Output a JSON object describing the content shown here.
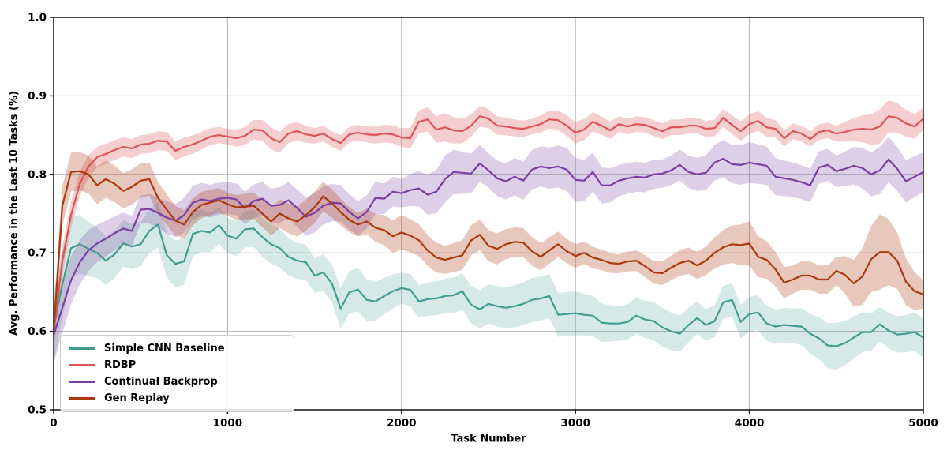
{
  "chart_data": {
    "type": "line",
    "title": "",
    "xlabel": "Task Number",
    "ylabel": "Avg. Performance in the Last 10 Tasks (%)",
    "xlim": [
      0,
      5000
    ],
    "ylim": [
      0.5,
      1.0
    ],
    "x_ticks": [
      0,
      1000,
      2000,
      3000,
      4000,
      5000
    ],
    "x_tick_labels": [
      "0",
      "1000",
      "2000",
      "3000",
      "4000",
      "5000"
    ],
    "y_ticks": [
      0.5,
      0.6,
      0.7,
      0.8,
      0.9,
      1.0
    ],
    "y_tick_labels": [
      "0.5",
      "0.6",
      "0.7",
      "0.8",
      "0.9",
      "1.0"
    ],
    "grid": true,
    "grid_color": "#b0b0b0",
    "legend_position": "lower left",
    "x_step": 50,
    "band_x_step": 250,
    "series": [
      {
        "name": "Simple CNN Baseline",
        "color": "#419e8f",
        "band_alpha": 0.22,
        "values": [
          0.605,
          0.66,
          0.706,
          0.711,
          0.705,
          0.7,
          0.69,
          0.698,
          0.712,
          0.708,
          0.711,
          0.728,
          0.736,
          0.697,
          0.686,
          0.689,
          0.724,
          0.728,
          0.726,
          0.735,
          0.722,
          0.718,
          0.73,
          0.731,
          0.72,
          0.711,
          0.706,
          0.695,
          0.69,
          0.688,
          0.671,
          0.675,
          0.661,
          0.629,
          0.65,
          0.653,
          0.64,
          0.638,
          0.645,
          0.651,
          0.655,
          0.653,
          0.638,
          0.641,
          0.642,
          0.645,
          0.646,
          0.651,
          0.634,
          0.628,
          0.635,
          0.632,
          0.63,
          0.632,
          0.635,
          0.64,
          0.642,
          0.645,
          0.621,
          0.622,
          0.623,
          0.621,
          0.62,
          0.611,
          0.61,
          0.61,
          0.612,
          0.62,
          0.615,
          0.613,
          0.605,
          0.6,
          0.597,
          0.608,
          0.617,
          0.608,
          0.613,
          0.637,
          0.64,
          0.612,
          0.622,
          0.624,
          0.61,
          0.606,
          0.608,
          0.607,
          0.606,
          0.597,
          0.591,
          0.582,
          0.581,
          0.585,
          0.592,
          0.599,
          0.599,
          0.609,
          0.601,
          0.596,
          0.597,
          0.599,
          0.592
        ],
        "band_halfwidth": [
          0.045,
          0.032,
          0.028,
          0.03,
          0.022,
          0.025,
          0.022,
          0.028,
          0.02,
          0.022,
          0.025,
          0.028,
          0.028,
          0.022,
          0.025,
          0.02,
          0.022,
          0.022,
          0.03,
          0.022,
          0.025
        ]
      },
      {
        "name": "RDBP",
        "color": "#dc5457",
        "band_alpha": 0.28,
        "values": [
          0.6,
          0.69,
          0.748,
          0.788,
          0.81,
          0.822,
          0.826,
          0.831,
          0.835,
          0.833,
          0.838,
          0.839,
          0.843,
          0.842,
          0.83,
          0.835,
          0.838,
          0.843,
          0.848,
          0.85,
          0.848,
          0.846,
          0.849,
          0.857,
          0.856,
          0.846,
          0.841,
          0.852,
          0.855,
          0.851,
          0.849,
          0.852,
          0.845,
          0.84,
          0.851,
          0.853,
          0.851,
          0.85,
          0.852,
          0.851,
          0.847,
          0.846,
          0.867,
          0.87,
          0.857,
          0.86,
          0.856,
          0.855,
          0.862,
          0.874,
          0.871,
          0.862,
          0.861,
          0.859,
          0.858,
          0.861,
          0.864,
          0.87,
          0.869,
          0.862,
          0.853,
          0.857,
          0.867,
          0.862,
          0.856,
          0.864,
          0.861,
          0.864,
          0.863,
          0.859,
          0.855,
          0.86,
          0.86,
          0.862,
          0.862,
          0.858,
          0.859,
          0.872,
          0.863,
          0.855,
          0.864,
          0.868,
          0.86,
          0.858,
          0.846,
          0.855,
          0.852,
          0.845,
          0.854,
          0.856,
          0.852,
          0.854,
          0.857,
          0.858,
          0.857,
          0.861,
          0.874,
          0.872,
          0.865,
          0.861,
          0.871
        ],
        "band_halfwidth": [
          0.02,
          0.013,
          0.012,
          0.012,
          0.01,
          0.014,
          0.01,
          0.01,
          0.012,
          0.018,
          0.012,
          0.01,
          0.014,
          0.01,
          0.01,
          0.01,
          0.013,
          0.01,
          0.01,
          0.022,
          0.014
        ]
      },
      {
        "name": "Continual Backprop",
        "color": "#7b3fa3",
        "band_alpha": 0.25,
        "values": [
          0.595,
          0.63,
          0.665,
          0.688,
          0.703,
          0.712,
          0.718,
          0.725,
          0.731,
          0.728,
          0.755,
          0.756,
          0.751,
          0.745,
          0.741,
          0.748,
          0.764,
          0.768,
          0.766,
          0.769,
          0.77,
          0.768,
          0.757,
          0.766,
          0.769,
          0.76,
          0.761,
          0.767,
          0.757,
          0.746,
          0.751,
          0.76,
          0.764,
          0.763,
          0.752,
          0.744,
          0.752,
          0.77,
          0.769,
          0.778,
          0.776,
          0.78,
          0.782,
          0.774,
          0.778,
          0.794,
          0.803,
          0.802,
          0.801,
          0.814,
          0.805,
          0.795,
          0.791,
          0.797,
          0.792,
          0.806,
          0.81,
          0.808,
          0.81,
          0.806,
          0.793,
          0.792,
          0.803,
          0.786,
          0.786,
          0.792,
          0.795,
          0.797,
          0.796,
          0.8,
          0.801,
          0.805,
          0.812,
          0.803,
          0.8,
          0.802,
          0.815,
          0.82,
          0.813,
          0.812,
          0.815,
          0.813,
          0.811,
          0.797,
          0.795,
          0.793,
          0.79,
          0.786,
          0.809,
          0.812,
          0.804,
          0.807,
          0.811,
          0.808,
          0.8,
          0.805,
          0.819,
          0.807,
          0.791,
          0.797,
          0.803
        ],
        "band_halfwidth": [
          0.035,
          0.024,
          0.018,
          0.022,
          0.02,
          0.022,
          0.025,
          0.022,
          0.018,
          0.03,
          0.022,
          0.025,
          0.028,
          0.02,
          0.018,
          0.022,
          0.026,
          0.022,
          0.02,
          0.03,
          0.025
        ]
      },
      {
        "name": "Gen Replay",
        "color": "#ab3a0e",
        "band_alpha": 0.28,
        "values": [
          0.6,
          0.76,
          0.803,
          0.804,
          0.8,
          0.786,
          0.794,
          0.788,
          0.779,
          0.784,
          0.792,
          0.794,
          0.77,
          0.755,
          0.741,
          0.736,
          0.752,
          0.761,
          0.764,
          0.767,
          0.762,
          0.758,
          0.759,
          0.76,
          0.75,
          0.74,
          0.75,
          0.744,
          0.74,
          0.748,
          0.758,
          0.772,
          0.763,
          0.752,
          0.742,
          0.736,
          0.74,
          0.732,
          0.729,
          0.721,
          0.726,
          0.722,
          0.716,
          0.703,
          0.694,
          0.691,
          0.694,
          0.697,
          0.716,
          0.723,
          0.709,
          0.705,
          0.711,
          0.714,
          0.713,
          0.702,
          0.695,
          0.703,
          0.711,
          0.702,
          0.696,
          0.7,
          0.694,
          0.691,
          0.687,
          0.686,
          0.689,
          0.69,
          0.683,
          0.675,
          0.674,
          0.681,
          0.687,
          0.69,
          0.684,
          0.69,
          0.7,
          0.707,
          0.711,
          0.71,
          0.712,
          0.695,
          0.691,
          0.679,
          0.662,
          0.666,
          0.671,
          0.671,
          0.666,
          0.666,
          0.677,
          0.672,
          0.661,
          0.67,
          0.692,
          0.701,
          0.701,
          0.69,
          0.663,
          0.651,
          0.647
        ],
        "band_halfwidth": [
          0.025,
          0.024,
          0.022,
          0.018,
          0.015,
          0.018,
          0.02,
          0.015,
          0.022,
          0.018,
          0.02,
          0.018,
          0.015,
          0.012,
          0.015,
          0.018,
          0.028,
          0.018,
          0.018,
          0.048,
          0.018
        ]
      }
    ]
  }
}
